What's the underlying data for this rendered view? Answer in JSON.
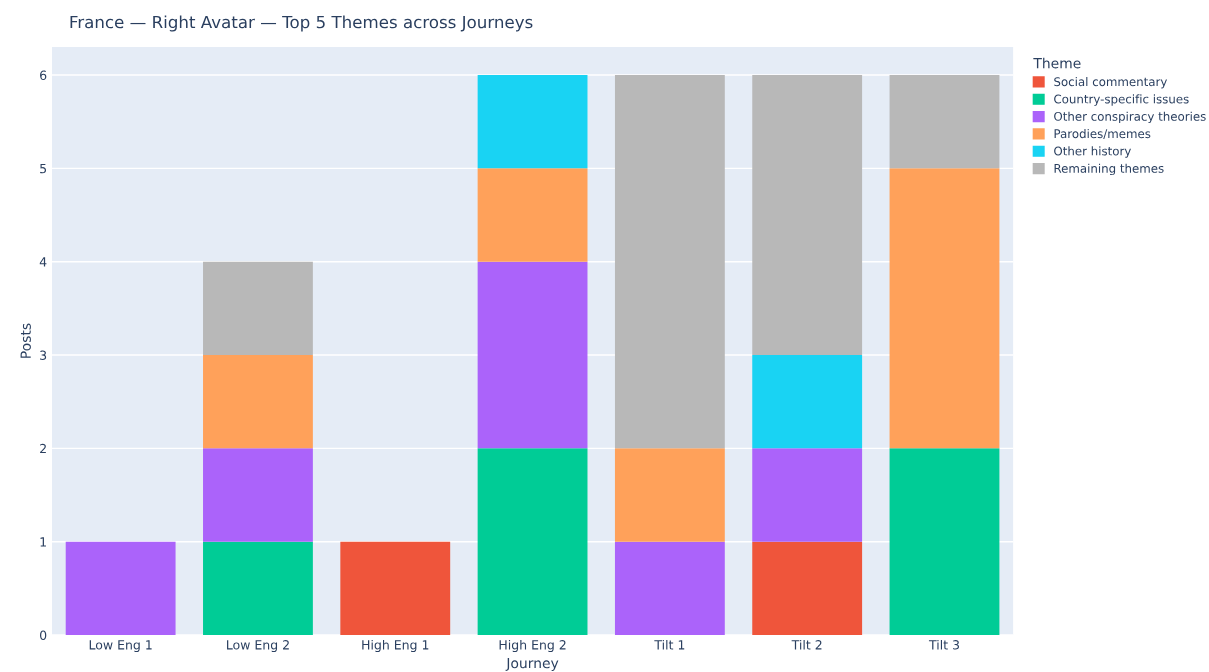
{
  "chart_data": {
    "type": "bar",
    "title": "France — Right Avatar — Top 5 Themes across Journeys",
    "xlabel": "Journey",
    "ylabel": "Posts",
    "legend_title": "Theme",
    "categories": [
      "Low Eng 1",
      "Low Eng 2",
      "High Eng 1",
      "High Eng 2",
      "Tilt 1",
      "Tilt 2",
      "Tilt 3"
    ],
    "stacked": true,
    "series": [
      {
        "name": "Social commentary",
        "color": "#ef553b",
        "values": [
          null,
          null,
          1,
          null,
          null,
          1,
          null
        ]
      },
      {
        "name": "Country-specific issues",
        "color": "#00cc96",
        "values": [
          null,
          1,
          null,
          2,
          null,
          null,
          2
        ]
      },
      {
        "name": "Other conspiracy theories",
        "color": "#ab63fa",
        "values": [
          1,
          1,
          null,
          2,
          1,
          1,
          null
        ]
      },
      {
        "name": "Parodies/memes",
        "color": "#ffa15a",
        "values": [
          null,
          1,
          null,
          1,
          1,
          null,
          3
        ]
      },
      {
        "name": "Other history",
        "color": "#19d3f3",
        "values": [
          null,
          null,
          null,
          1,
          null,
          1,
          null
        ]
      },
      {
        "name": "Remaining themes",
        "color": "#b8b8b8",
        "values": [
          null,
          1,
          null,
          null,
          4,
          3,
          1
        ]
      }
    ],
    "ylim": [
      0,
      6.3
    ],
    "yticks": [
      0,
      1,
      2,
      3,
      4,
      5,
      6
    ],
    "grid": "y",
    "legend": "right"
  }
}
